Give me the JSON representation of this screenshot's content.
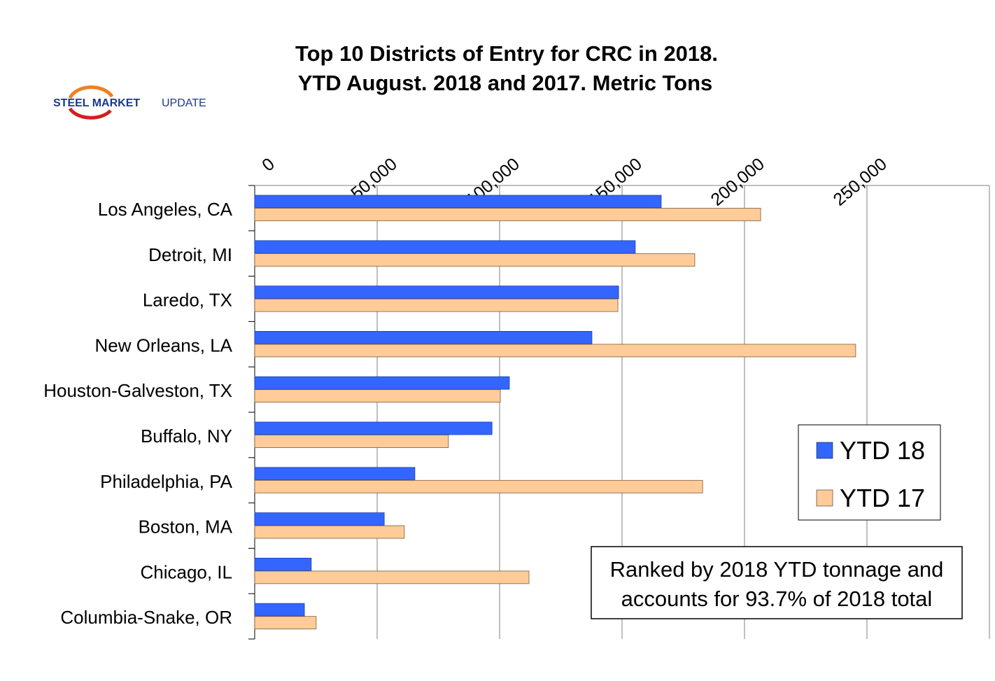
{
  "logo": {
    "text_bold": "STEEL MARKET",
    "text_light": "UPDATE"
  },
  "chart_data": {
    "type": "bar",
    "orientation": "horizontal",
    "title": [
      "Top 10 Districts of Entry for CRC in 2018.",
      "YTD August.   2018 and 2017. Metric Tons"
    ],
    "categories": [
      "Los Angeles, CA",
      "Detroit, MI",
      "Laredo, TX",
      "New Orleans, LA",
      "Houston-Galveston, TX",
      "Buffalo, NY",
      "Philadelphia, PA",
      "Boston, MA",
      "Chicago, IL",
      "Columbia-Snake, OR"
    ],
    "series": [
      {
        "name": "YTD 18",
        "color": "#3366FF",
        "values": [
          166000,
          155400,
          148600,
          137700,
          104000,
          96900,
          65400,
          52900,
          23100,
          20300
        ]
      },
      {
        "name": "YTD 17",
        "color": "#FFCC99",
        "values": [
          206600,
          179700,
          148300,
          245400,
          100300,
          79100,
          182900,
          61100,
          112000,
          25100
        ]
      }
    ],
    "xlim": [
      0,
      300000
    ],
    "ticks": [
      0,
      50000,
      100000,
      150000,
      200000,
      250000
    ],
    "tick_labels": [
      "0",
      "50,000",
      "100,000",
      "150,000",
      "200,000",
      "250,000"
    ],
    "x_axis_position": "top",
    "grid": true,
    "legend_position": "right",
    "annotation": [
      "Ranked by 2018 YTD tonnage and",
      "accounts for 93.7% of 2018 total"
    ]
  }
}
